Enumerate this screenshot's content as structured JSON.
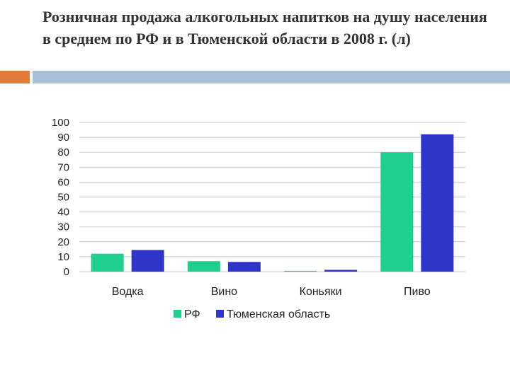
{
  "slide": {
    "title": "Розничная продажа алкогольных напитков на душу населения в среднем по РФ и в Тюменской области в 2008 г. (л)"
  },
  "colors": {
    "accent_orange": "#e07b39",
    "accent_blue": "#a9c0d6"
  },
  "chart_data": {
    "type": "bar",
    "categories": [
      "Водка",
      "Вино",
      "Коньяки",
      "Пиво"
    ],
    "series": [
      {
        "name": "РФ",
        "color": "#1fcf8f",
        "values": [
          12,
          7,
          0.5,
          80
        ]
      },
      {
        "name": "Тюменская область",
        "color": "#2f35c8",
        "values": [
          14.5,
          6.5,
          1.2,
          92
        ]
      }
    ],
    "ylim": [
      0,
      100
    ],
    "yticks": [
      0,
      10,
      20,
      30,
      40,
      50,
      60,
      70,
      80,
      90,
      100
    ],
    "grid": true,
    "legend": "bottom"
  }
}
